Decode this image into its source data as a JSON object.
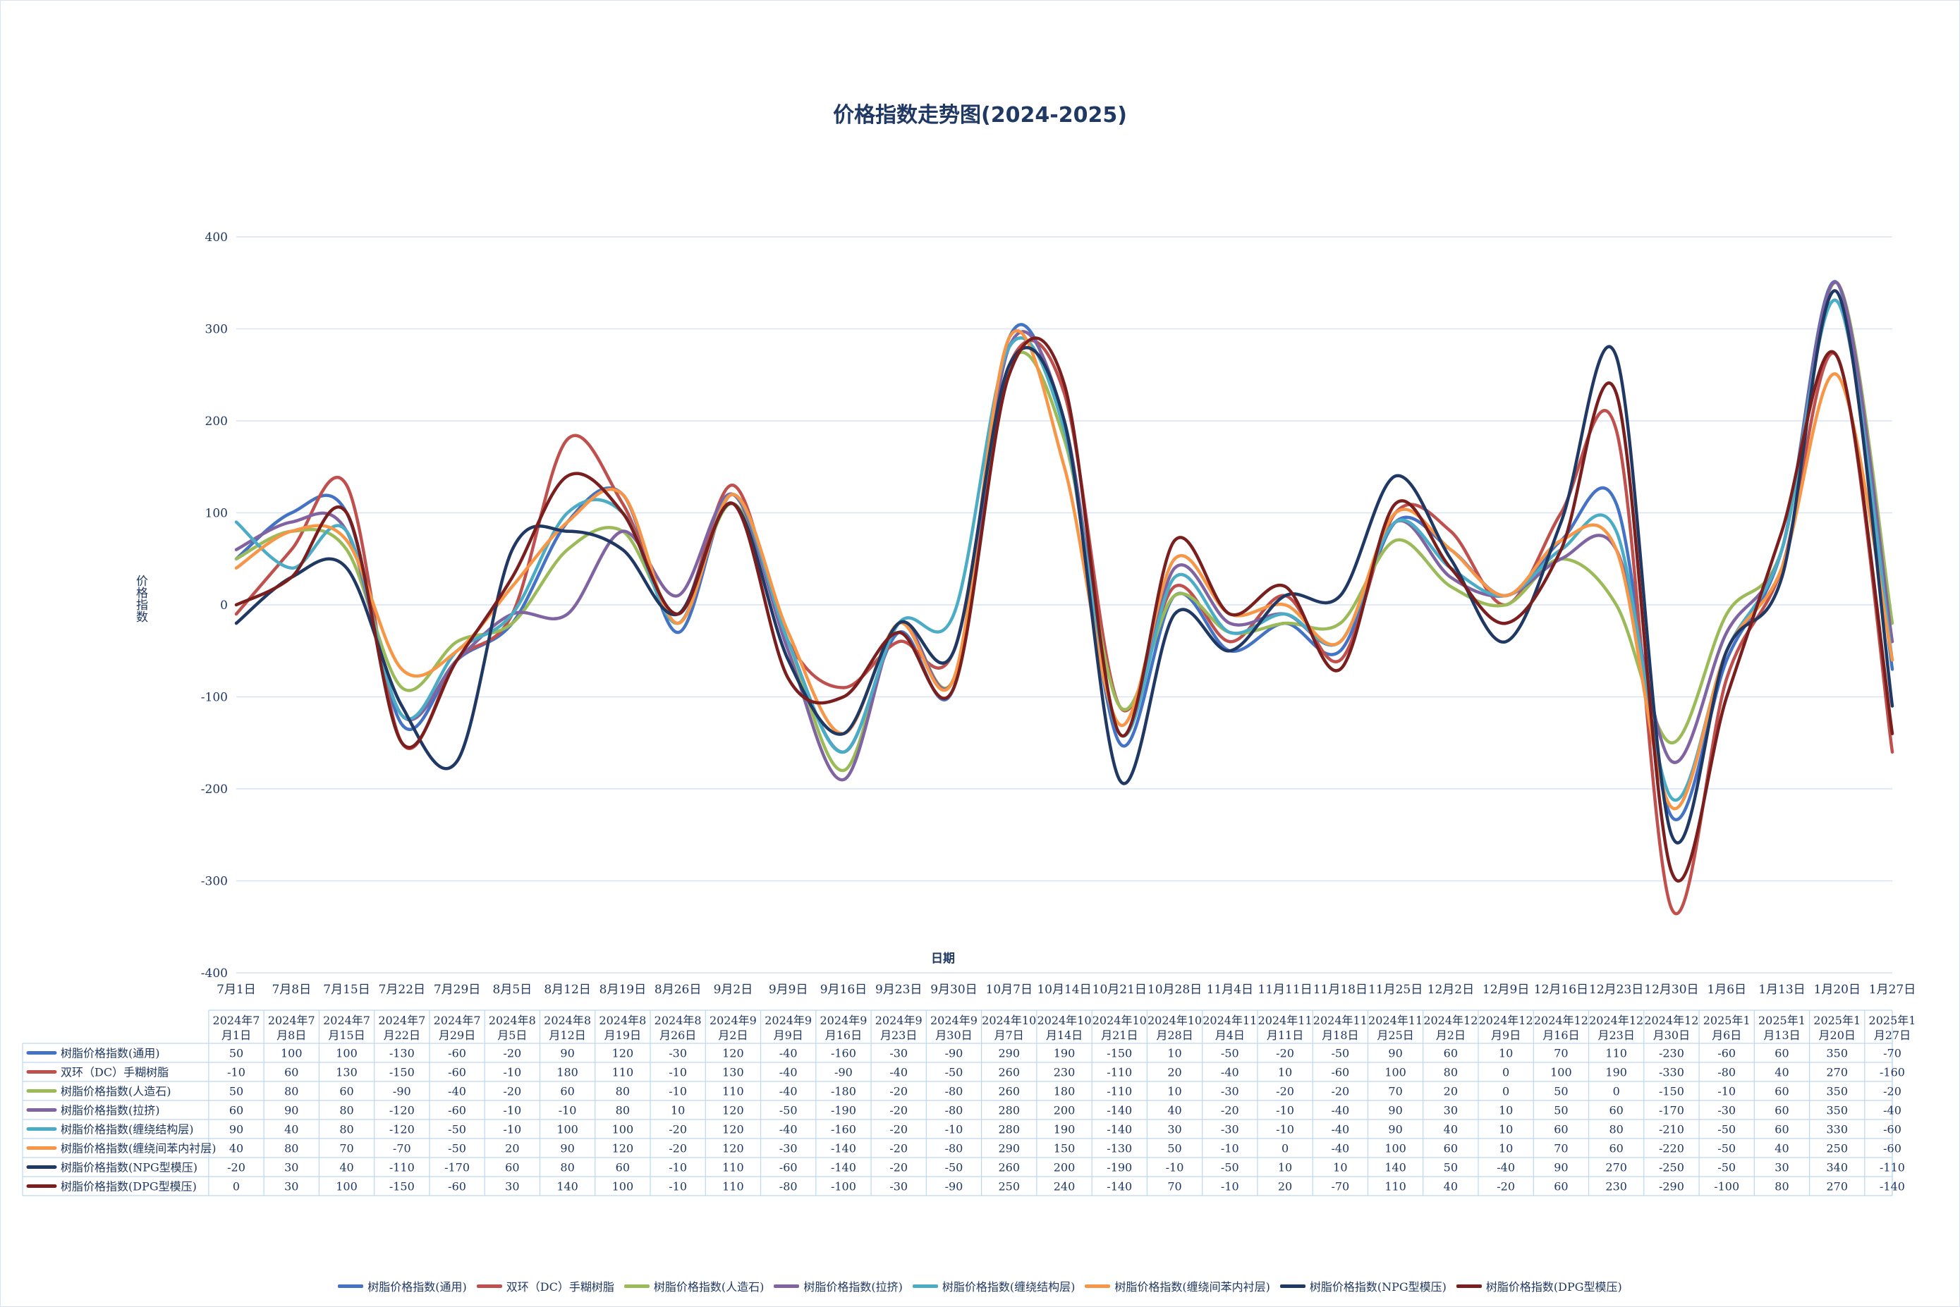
{
  "chart_data": {
    "type": "line",
    "title": "价格指数走势图(2024-2025)",
    "xlabel": "日期",
    "ylabel": "价格指数",
    "ylim": [
      -400,
      400
    ],
    "y_ticks": [
      "400",
      "300",
      "200",
      "100",
      "0",
      "-100",
      "-200",
      "-300",
      "-400"
    ],
    "grid": true,
    "legend_position": "bottom",
    "x_tick_labels": [
      "7月1日",
      "7月8日",
      "7月15日",
      "7月22日",
      "7月29日",
      "8月5日",
      "8月12日",
      "8月19日",
      "8月26日",
      "9月2日",
      "9月9日",
      "9月16日",
      "9月23日",
      "9月30日",
      "10月7日",
      "10月14日",
      "10月21日",
      "10月28日",
      "11月4日",
      "11月11日",
      "11月18日",
      "11月25日",
      "12月2日",
      "12月9日",
      "12月16日",
      "12月23日",
      "12月30日",
      "1月6日",
      "1月13日",
      "1月20日",
      "1月27日"
    ],
    "table_headers": [
      [
        "2024年7",
        "月1日"
      ],
      [
        "2024年7",
        "月8日"
      ],
      [
        "2024年7",
        "月15日"
      ],
      [
        "2024年7",
        "月22日"
      ],
      [
        "2024年7",
        "月29日"
      ],
      [
        "2024年8",
        "月5日"
      ],
      [
        "2024年8",
        "月12日"
      ],
      [
        "2024年8",
        "月19日"
      ],
      [
        "2024年8",
        "月26日"
      ],
      [
        "2024年9",
        "月2日"
      ],
      [
        "2024年9",
        "月9日"
      ],
      [
        "2024年9",
        "月16日"
      ],
      [
        "2024年9",
        "月23日"
      ],
      [
        "2024年9",
        "月30日"
      ],
      [
        "2024年10",
        "月7日"
      ],
      [
        "2024年10",
        "月14日"
      ],
      [
        "2024年10",
        "月21日"
      ],
      [
        "2024年10",
        "月28日"
      ],
      [
        "2024年11",
        "月4日"
      ],
      [
        "2024年11",
        "月11日"
      ],
      [
        "2024年11",
        "月18日"
      ],
      [
        "2024年11",
        "月25日"
      ],
      [
        "2024年12",
        "月2日"
      ],
      [
        "2024年12",
        "月9日"
      ],
      [
        "2024年12",
        "月16日"
      ],
      [
        "2024年12",
        "月23日"
      ],
      [
        "2024年12",
        "月30日"
      ],
      [
        "2025年1",
        "月6日"
      ],
      [
        "2025年1",
        "月13日"
      ],
      [
        "2025年1",
        "月20日"
      ],
      [
        "2025年1",
        "月27日"
      ]
    ],
    "series": [
      {
        "name": "树脂价格指数(通用)",
        "color": "#4472c4",
        "values": [
          50,
          100,
          100,
          -130,
          -60,
          -20,
          90,
          120,
          -30,
          120,
          -40,
          -160,
          -30,
          -90,
          290,
          190,
          -150,
          10,
          -50,
          -20,
          -50,
          90,
          60,
          10,
          70,
          110,
          -230,
          -60,
          60,
          350,
          -70
        ]
      },
      {
        "name": "双环（DC）手糊树脂",
        "color": "#c0504d",
        "values": [
          -10,
          60,
          130,
          -150,
          -60,
          -10,
          180,
          110,
          -10,
          130,
          -40,
          -90,
          -40,
          -50,
          260,
          230,
          -110,
          20,
          -40,
          10,
          -60,
          100,
          80,
          0,
          100,
          190,
          -330,
          -80,
          40,
          270,
          -160
        ]
      },
      {
        "name": "树脂价格指数(人造石)",
        "color": "#9bbb59",
        "values": [
          50,
          80,
          60,
          -90,
          -40,
          -20,
          60,
          80,
          -10,
          110,
          -40,
          -180,
          -20,
          -80,
          260,
          180,
          -110,
          10,
          -30,
          -20,
          -20,
          70,
          20,
          0,
          50,
          0,
          -150,
          -10,
          60,
          350,
          -20
        ]
      },
      {
        "name": "树脂价格指数(拉挤)",
        "color": "#8064a2",
        "values": [
          60,
          90,
          80,
          -120,
          -60,
          -10,
          -10,
          80,
          10,
          120,
          -50,
          -190,
          -20,
          -80,
          280,
          200,
          -140,
          40,
          -20,
          -10,
          -40,
          90,
          30,
          10,
          50,
          60,
          -170,
          -30,
          60,
          350,
          -40
        ]
      },
      {
        "name": "树脂价格指数(缠绕结构层)",
        "color": "#4bacc6",
        "values": [
          90,
          40,
          80,
          -120,
          -50,
          -10,
          100,
          100,
          -20,
          120,
          -40,
          -160,
          -20,
          -10,
          280,
          190,
          -140,
          30,
          -30,
          -10,
          -40,
          90,
          40,
          10,
          60,
          80,
          -210,
          -50,
          60,
          330,
          -60
        ]
      },
      {
        "name": "树脂价格指数(缠绕间苯内衬层)",
        "color": "#f79646",
        "values": [
          40,
          80,
          70,
          -70,
          -50,
          20,
          90,
          120,
          -20,
          120,
          -30,
          -140,
          -20,
          -80,
          290,
          150,
          -130,
          50,
          -10,
          0,
          -40,
          100,
          60,
          10,
          70,
          60,
          -220,
          -50,
          40,
          250,
          -60
        ]
      },
      {
        "name": "树脂价格指数(NPG型模压)",
        "color": "#1f3864",
        "values": [
          -20,
          30,
          40,
          -110,
          -170,
          60,
          80,
          60,
          -10,
          110,
          -60,
          -140,
          -20,
          -50,
          260,
          200,
          -190,
          -10,
          -50,
          10,
          10,
          140,
          50,
          -40,
          90,
          270,
          -250,
          -50,
          30,
          340,
          -110
        ]
      },
      {
        "name": "树脂价格指数(DPG型模压)",
        "color": "#7b1e1e",
        "values": [
          0,
          30,
          100,
          -150,
          -60,
          30,
          140,
          100,
          -10,
          110,
          -80,
          -100,
          -30,
          -90,
          250,
          240,
          -140,
          70,
          -10,
          20,
          -70,
          110,
          40,
          -20,
          60,
          230,
          -290,
          -100,
          80,
          270,
          -140
        ]
      }
    ]
  }
}
